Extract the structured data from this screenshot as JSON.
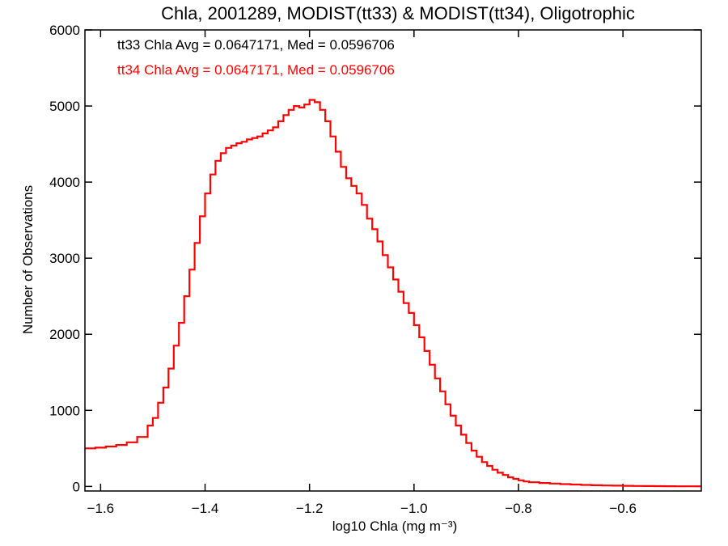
{
  "chart_data": {
    "type": "line",
    "title": "Chla, 2001289, MODIST(tt33) & MODIST(tt34), Oligotrophic",
    "xlabel": "log10 Chla (mg m⁻³)",
    "ylabel": "Number of Observations",
    "xlim": [
      -1.63,
      -0.45
    ],
    "ylim": [
      -60,
      6000
    ],
    "xticks": [
      {
        "value": -1.6,
        "label": "−1.6"
      },
      {
        "value": -1.4,
        "label": "−1.4"
      },
      {
        "value": -1.2,
        "label": "−1.2"
      },
      {
        "value": -1.0,
        "label": "−1.0"
      },
      {
        "value": -0.8,
        "label": "−0.8"
      },
      {
        "value": -0.6,
        "label": "−0.6"
      }
    ],
    "yticks": [
      {
        "value": 0,
        "label": "0"
      },
      {
        "value": 1000,
        "label": "1000"
      },
      {
        "value": 2000,
        "label": "2000"
      },
      {
        "value": 3000,
        "label": "3000"
      },
      {
        "value": 4000,
        "label": "4000"
      },
      {
        "value": 5000,
        "label": "5000"
      },
      {
        "value": 6000,
        "label": "6000"
      }
    ],
    "grid": false,
    "annotations": [
      {
        "text": "tt33 Chla Avg = 0.0647171, Med = 0.0596706",
        "color": "#000000"
      },
      {
        "text": "tt34 Chla Avg = 0.0647171, Med = 0.0596706",
        "color": "#ff0000"
      }
    ],
    "series": [
      {
        "color": "#ff0000",
        "step": "histogram",
        "points": [
          [
            -1.63,
            500
          ],
          [
            -1.61,
            510
          ],
          [
            -1.59,
            525
          ],
          [
            -1.57,
            545
          ],
          [
            -1.55,
            580
          ],
          [
            -1.53,
            650
          ],
          [
            -1.51,
            800
          ],
          [
            -1.5,
            900
          ],
          [
            -1.49,
            1100
          ],
          [
            -1.48,
            1300
          ],
          [
            -1.47,
            1550
          ],
          [
            -1.46,
            1850
          ],
          [
            -1.45,
            2150
          ],
          [
            -1.44,
            2500
          ],
          [
            -1.43,
            2850
          ],
          [
            -1.42,
            3200
          ],
          [
            -1.41,
            3550
          ],
          [
            -1.4,
            3850
          ],
          [
            -1.39,
            4100
          ],
          [
            -1.38,
            4280
          ],
          [
            -1.37,
            4380
          ],
          [
            -1.36,
            4450
          ],
          [
            -1.35,
            4480
          ],
          [
            -1.34,
            4510
          ],
          [
            -1.33,
            4530
          ],
          [
            -1.32,
            4560
          ],
          [
            -1.31,
            4580
          ],
          [
            -1.3,
            4600
          ],
          [
            -1.29,
            4640
          ],
          [
            -1.28,
            4680
          ],
          [
            -1.27,
            4720
          ],
          [
            -1.26,
            4800
          ],
          [
            -1.25,
            4880
          ],
          [
            -1.24,
            4950
          ],
          [
            -1.23,
            5000
          ],
          [
            -1.22,
            4980
          ],
          [
            -1.21,
            5020
          ],
          [
            -1.2,
            5080
          ],
          [
            -1.19,
            5050
          ],
          [
            -1.18,
            4950
          ],
          [
            -1.17,
            4800
          ],
          [
            -1.16,
            4600
          ],
          [
            -1.15,
            4400
          ],
          [
            -1.14,
            4200
          ],
          [
            -1.13,
            4050
          ],
          [
            -1.12,
            3950
          ],
          [
            -1.11,
            3850
          ],
          [
            -1.1,
            3700
          ],
          [
            -1.09,
            3520
          ],
          [
            -1.08,
            3380
          ],
          [
            -1.07,
            3220
          ],
          [
            -1.06,
            3040
          ],
          [
            -1.05,
            2880
          ],
          [
            -1.04,
            2720
          ],
          [
            -1.03,
            2560
          ],
          [
            -1.02,
            2410
          ],
          [
            -1.01,
            2280
          ],
          [
            -1.0,
            2120
          ],
          [
            -0.99,
            1960
          ],
          [
            -0.98,
            1780
          ],
          [
            -0.97,
            1600
          ],
          [
            -0.96,
            1420
          ],
          [
            -0.95,
            1250
          ],
          [
            -0.94,
            1080
          ],
          [
            -0.93,
            930
          ],
          [
            -0.92,
            800
          ],
          [
            -0.91,
            680
          ],
          [
            -0.9,
            570
          ],
          [
            -0.89,
            470
          ],
          [
            -0.88,
            390
          ],
          [
            -0.87,
            320
          ],
          [
            -0.86,
            270
          ],
          [
            -0.85,
            220
          ],
          [
            -0.84,
            180
          ],
          [
            -0.83,
            150
          ],
          [
            -0.82,
            120
          ],
          [
            -0.81,
            100
          ],
          [
            -0.8,
            80
          ],
          [
            -0.79,
            65
          ],
          [
            -0.78,
            55
          ],
          [
            -0.76,
            45
          ],
          [
            -0.74,
            38
          ],
          [
            -0.72,
            30
          ],
          [
            -0.7,
            25
          ],
          [
            -0.68,
            20
          ],
          [
            -0.66,
            15
          ],
          [
            -0.64,
            12
          ],
          [
            -0.62,
            10
          ],
          [
            -0.6,
            8
          ],
          [
            -0.58,
            6
          ],
          [
            -0.56,
            5
          ],
          [
            -0.54,
            4
          ],
          [
            -0.52,
            3
          ],
          [
            -0.5,
            2
          ],
          [
            -0.48,
            2
          ],
          [
            -0.46,
            2
          ]
        ]
      }
    ]
  }
}
